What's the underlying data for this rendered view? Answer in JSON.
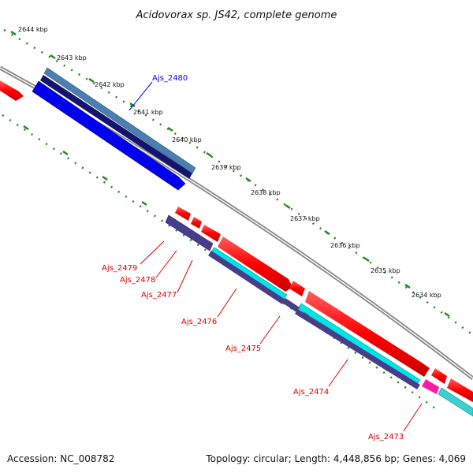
{
  "title": "Acidovorax sp. JS42, complete genome",
  "kbp_labels": [
    "2644 kbp",
    "2643 kbp",
    "2642 kbp",
    "2641 kbp",
    "2640 kbp",
    "2639 kbp",
    "2638 kbp",
    "2637 kbp",
    "2636 kbp",
    "2635 kbp",
    "2634 kbp"
  ],
  "genes": {
    "plus": [
      "Ajs_2480"
    ],
    "minus": [
      "Ajs_2479",
      "Ajs_2478",
      "Ajs_2477",
      "Ajs_2476",
      "Ajs_2475",
      "Ajs_2474",
      "Ajs_2473"
    ]
  },
  "footer": {
    "accession": "Accession: NC_008782",
    "summary": "Topology: circular; Length: 4,448,856 bp; Genes: 4,069"
  },
  "colors": {
    "cds_blue": "#0000ee",
    "cds_navy": "#14146e",
    "cds_steel": "#4a7fb0",
    "cds_red": "#ff0000",
    "cds_purple": "#483d8b",
    "cds_cyan": "#00e5e5",
    "cds_magenta": "#ff1aa6",
    "label_blue": "#0000ff",
    "label_red": "#dd0000",
    "tick_green": "#1e8a1e",
    "backbone": "#888888"
  }
}
